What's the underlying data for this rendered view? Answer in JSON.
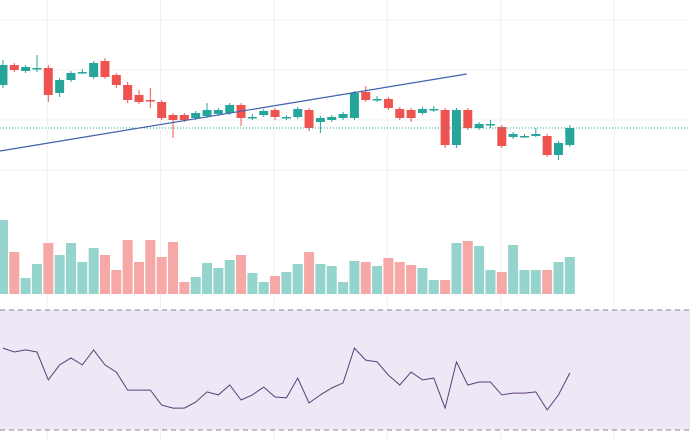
{
  "chart_data": [
    {
      "type": "candlestick",
      "x": [
        0,
        1,
        2,
        3,
        4,
        5,
        6,
        7,
        8,
        9,
        10,
        11,
        12,
        13,
        14,
        15,
        16,
        17,
        18,
        19,
        20,
        21,
        22,
        23,
        24,
        25,
        26,
        27,
        28,
        29,
        30,
        31,
        32,
        33,
        34,
        35,
        36,
        37,
        38,
        39,
        40,
        41,
        42,
        43,
        44,
        45,
        46,
        47,
        48,
        49,
        50
      ],
      "open": [
        93.5,
        95.5,
        94.9,
        95.2,
        95.2,
        92.7,
        94,
        94.8,
        94.3,
        95.9,
        94.5,
        93.5,
        92.5,
        92,
        91.8,
        90.5,
        90.5,
        90.2,
        90.4,
        90.6,
        90.7,
        91.5,
        90.3,
        90.5,
        91,
        90.3,
        90.3,
        91,
        89.8,
        90,
        90.2,
        90.2,
        92.8,
        92.1,
        92.1,
        91.1,
        91,
        90.7,
        91.1,
        91,
        87.5,
        91,
        89.2,
        89.6,
        89.3,
        88.3,
        88.4,
        88.4,
        88.4,
        86.5,
        87.5
      ],
      "high": [
        96,
        95.7,
        95.5,
        96.5,
        95.5,
        94.2,
        94.9,
        95.1,
        95.9,
        96.2,
        94.7,
        93.8,
        93,
        93.2,
        92,
        90.7,
        90.7,
        90.9,
        91.7,
        91.2,
        91.7,
        91.7,
        90.6,
        91.1,
        91.2,
        90.5,
        91.3,
        91.2,
        90.4,
        90.5,
        90.8,
        92.9,
        93.4,
        92.4,
        92.3,
        91.3,
        91.2,
        91.3,
        91.4,
        91.2,
        91.2,
        91.2,
        89.8,
        90,
        89.5,
        88.8,
        88.6,
        89.2,
        88.6,
        87.9,
        89.5
      ],
      "low": [
        93.2,
        94.8,
        94.7,
        94.8,
        91.8,
        92.3,
        93.8,
        94.6,
        94.1,
        94.1,
        93.2,
        91.7,
        91.6,
        91.2,
        90,
        88.2,
        89.8,
        90,
        90.2,
        90.4,
        90.5,
        89.4,
        90,
        90.3,
        90,
        90,
        90.1,
        88.9,
        88.7,
        89.8,
        90,
        90,
        91.8,
        91.8,
        91,
        90,
        89.8,
        90.5,
        90.8,
        87.2,
        87.2,
        89,
        89,
        89.2,
        87.2,
        88.1,
        88.2,
        88.3,
        86.3,
        86,
        87.3
      ],
      "close": [
        95.5,
        95,
        95.3,
        95.2,
        92.5,
        94,
        94.7,
        94.8,
        95.7,
        94.3,
        93.5,
        92,
        91.8,
        91.9,
        90.2,
        90,
        90,
        90.7,
        91,
        91,
        91.5,
        90.2,
        90.3,
        90.9,
        90.3,
        90.3,
        91.1,
        89.2,
        90.2,
        90.3,
        90.6,
        92.7,
        92,
        92.1,
        91.2,
        90.2,
        90.2,
        91.1,
        91.1,
        87.5,
        91,
        89.2,
        89.6,
        89.6,
        87.4,
        88.6,
        88.4,
        88.6,
        86.5,
        87.7,
        89.2
      ],
      "up_color": "#26a69a",
      "down_color": "#ef5350",
      "xlim": [
        -0.26,
        60.6
      ],
      "xticks": [
        3.9,
        13.9,
        23.9,
        33.9,
        43.9,
        53.9
      ],
      "ylim": [
        82,
        102
      ],
      "yticks": [
        85,
        90,
        95,
        100
      ],
      "grid": true,
      "price_line": 89.2,
      "price_line_color": "#26a69a",
      "trendline": {
        "x": [
          -0.26,
          40.9
        ],
        "values": [
          86.9,
          94.6
        ],
        "color": "#3f5fae"
      }
    },
    {
      "type": "bar",
      "x": [
        0,
        1,
        2,
        3,
        4,
        5,
        6,
        7,
        8,
        9,
        10,
        11,
        12,
        13,
        14,
        15,
        16,
        17,
        18,
        19,
        20,
        21,
        22,
        23,
        24,
        25,
        26,
        27,
        28,
        29,
        30,
        31,
        32,
        33,
        34,
        35,
        36,
        37,
        38,
        39,
        40,
        41,
        42,
        43,
        44,
        45,
        46,
        47,
        48,
        49,
        50
      ],
      "values": [
        74,
        42,
        16,
        30,
        51,
        39,
        51,
        32,
        46,
        39,
        24,
        54,
        32,
        54,
        37,
        52,
        12,
        17,
        31,
        26,
        34,
        39,
        21,
        12,
        18,
        22,
        30,
        42,
        30,
        28,
        12,
        33,
        32,
        28,
        36,
        32,
        29,
        26,
        14,
        14,
        51,
        53,
        48,
        24,
        22,
        49,
        24,
        24,
        24,
        32,
        37
      ],
      "up_color": "#94d4cd",
      "down_color": "#f5a8a6",
      "xlim": [
        -0.26,
        60.6
      ],
      "ylim": [
        0,
        74
      ]
    },
    {
      "type": "line",
      "x": [
        0,
        1,
        2,
        3,
        4,
        5,
        6,
        7,
        8,
        9,
        10,
        11,
        12,
        13,
        14,
        15,
        16,
        17,
        18,
        19,
        20,
        21,
        22,
        23,
        24,
        25,
        26,
        27,
        28,
        29,
        30,
        31,
        32,
        33,
        34,
        35,
        36,
        37,
        38,
        39,
        40,
        41,
        42,
        43,
        44,
        45,
        46,
        47,
        48,
        49,
        50
      ],
      "values": [
        57.3,
        56,
        56.7,
        56,
        46.7,
        51.7,
        54,
        51.7,
        56.7,
        51.7,
        49.3,
        43.3,
        43.3,
        43.3,
        38.3,
        37.3,
        37.3,
        39.3,
        42.7,
        41.7,
        45,
        40,
        41.7,
        44.3,
        41,
        40.7,
        47.3,
        39,
        41.7,
        44,
        45.7,
        57.3,
        53.3,
        52.7,
        48.3,
        45,
        49.3,
        46.7,
        47.3,
        37.3,
        52.7,
        45,
        46,
        46,
        41.7,
        42.3,
        42.3,
        42.7,
        36.7,
        41.7,
        49
      ],
      "color": "#5b3f78",
      "band_color": "#ede7f6",
      "xlim": [
        -0.26,
        60.6
      ],
      "ylim": [
        27,
        73
      ],
      "yticks": [
        30,
        70
      ]
    }
  ]
}
